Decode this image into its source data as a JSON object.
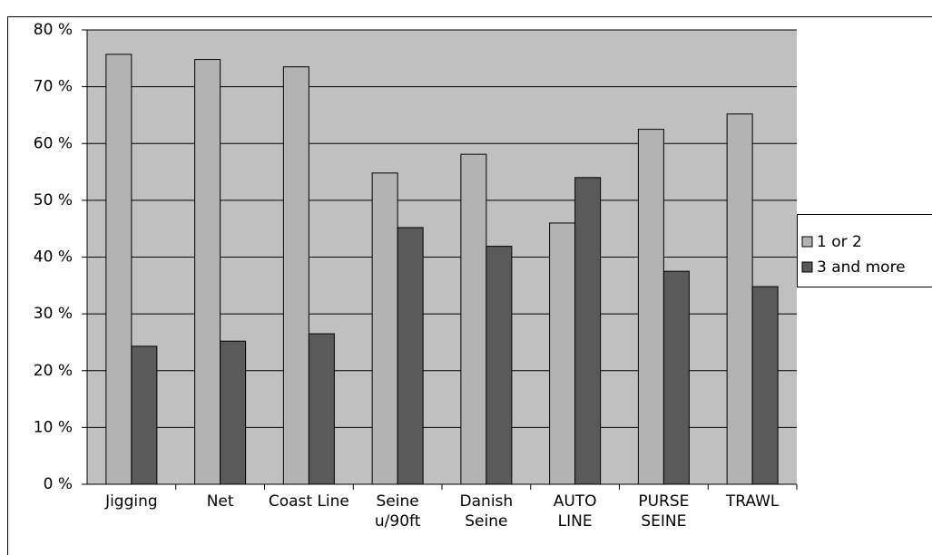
{
  "chart_data": {
    "type": "bar",
    "categories": [
      "Jigging",
      "Net",
      "Coast Line",
      "Seine u/90ft",
      "Danish Seine",
      "AUTO LINE",
      "PURSE SEINE",
      "TRAWL"
    ],
    "series": [
      {
        "name": "1 or 2",
        "color": "#b3b3b3",
        "values": [
          75.7,
          74.8,
          73.5,
          54.8,
          58.1,
          46,
          62.5,
          65.2
        ]
      },
      {
        "name": "3 and more",
        "color": "#5a5a5a",
        "values": [
          24.3,
          25.2,
          26.5,
          45.2,
          41.9,
          54,
          37.5,
          34.8
        ]
      }
    ],
    "ylim": [
      0,
      80
    ],
    "yticks": [
      {
        "value": 0,
        "label": "0 %"
      },
      {
        "value": 10,
        "label": "10 %"
      },
      {
        "value": 20,
        "label": "20 %"
      },
      {
        "value": 30,
        "label": "30 %"
      },
      {
        "value": 40,
        "label": "40 %"
      },
      {
        "value": 50,
        "label": "50 %"
      },
      {
        "value": 60,
        "label": "60 %"
      },
      {
        "value": 70,
        "label": "70 %"
      },
      {
        "value": 80,
        "label": "80 %"
      }
    ],
    "grid": true,
    "legend": "right"
  }
}
